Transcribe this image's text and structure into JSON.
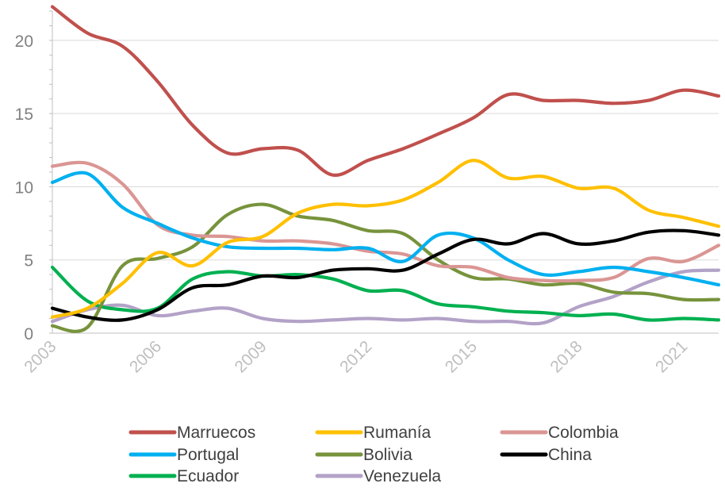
{
  "chart_data": {
    "type": "line",
    "title": "",
    "xlabel": "",
    "ylabel": "",
    "x": [
      2003,
      2004,
      2005,
      2006,
      2007,
      2008,
      2009,
      2010,
      2011,
      2012,
      2013,
      2014,
      2015,
      2016,
      2017,
      2018,
      2019,
      2020,
      2021,
      2022
    ],
    "xticks": [
      "2003",
      "2006",
      "2009",
      "2012",
      "2015",
      "2018",
      "2021"
    ],
    "xtick_values": [
      2003,
      2006,
      2009,
      2012,
      2015,
      2018,
      2021
    ],
    "yticks": [
      "0",
      "5",
      "10",
      "15",
      "20"
    ],
    "ytick_values": [
      0,
      5,
      10,
      15,
      20
    ],
    "ylim": [
      0,
      22
    ],
    "xlim": [
      2003,
      2022
    ],
    "grid": "horizontal",
    "legend_position": "bottom",
    "series": [
      {
        "name": "Marruecos",
        "color": "#c0504d",
        "values": [
          22.3,
          20.5,
          19.6,
          17.2,
          14.2,
          12.3,
          12.6,
          12.5,
          10.8,
          11.8,
          12.6,
          13.6,
          14.7,
          16.3,
          15.9,
          15.9,
          15.7,
          15.9,
          16.6,
          16.2
        ]
      },
      {
        "name": "Rumanía",
        "color": "#ffc000",
        "values": [
          1.1,
          1.7,
          3.4,
          5.5,
          4.6,
          6.2,
          6.6,
          8.2,
          8.8,
          8.7,
          9.1,
          10.3,
          11.8,
          10.6,
          10.7,
          9.9,
          9.9,
          8.4,
          7.9,
          7.3
        ]
      },
      {
        "name": "Colombia",
        "color": "#da9694",
        "values": [
          11.4,
          11.6,
          10.2,
          7.4,
          6.7,
          6.6,
          6.3,
          6.3,
          6.1,
          5.6,
          5.4,
          4.6,
          4.5,
          3.8,
          3.6,
          3.6,
          3.8,
          5.1,
          4.9,
          6.0
        ]
      },
      {
        "name": "Portugal",
        "color": "#00b0f0",
        "values": [
          10.3,
          10.9,
          8.6,
          7.5,
          6.5,
          5.9,
          5.8,
          5.8,
          5.7,
          5.8,
          4.9,
          6.7,
          6.5,
          5.0,
          4.0,
          4.2,
          4.5,
          4.2,
          3.8,
          3.3
        ]
      },
      {
        "name": "Bolivia",
        "color": "#77933c",
        "values": [
          0.5,
          0.4,
          4.6,
          5.1,
          5.9,
          8.1,
          8.8,
          8.0,
          7.7,
          7.0,
          6.8,
          5.0,
          3.8,
          3.7,
          3.3,
          3.4,
          2.8,
          2.7,
          2.3,
          2.3
        ]
      },
      {
        "name": "China",
        "color": "#000000",
        "values": [
          1.7,
          1.1,
          0.9,
          1.6,
          3.1,
          3.3,
          3.9,
          3.8,
          4.3,
          4.4,
          4.3,
          5.4,
          6.4,
          6.1,
          6.8,
          6.1,
          6.3,
          6.9,
          7.0,
          6.7
        ]
      },
      {
        "name": "Ecuador",
        "color": "#00b050",
        "values": [
          4.5,
          2.2,
          1.6,
          1.7,
          3.7,
          4.2,
          3.9,
          4.0,
          3.7,
          2.9,
          2.9,
          2.0,
          1.8,
          1.5,
          1.4,
          1.2,
          1.3,
          0.9,
          1.0,
          0.9
        ]
      },
      {
        "name": "Venezuela",
        "color": "#b3a2c7",
        "values": [
          0.8,
          1.6,
          1.9,
          1.2,
          1.5,
          1.7,
          1.0,
          0.8,
          0.9,
          1.0,
          0.9,
          1.0,
          0.8,
          0.8,
          0.7,
          1.8,
          2.5,
          3.5,
          4.2,
          4.3
        ]
      }
    ]
  }
}
